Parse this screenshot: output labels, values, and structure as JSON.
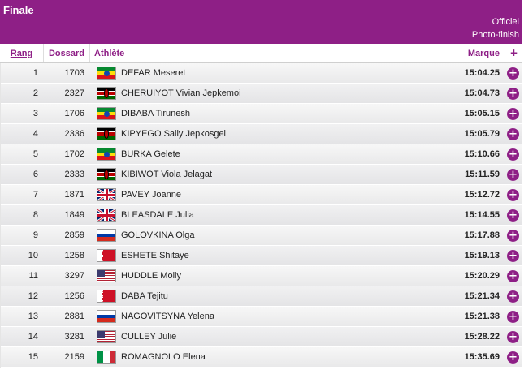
{
  "header": {
    "title": "Finale",
    "status_line1": "Officiel",
    "status_line2": "Photo-finish"
  },
  "columns": {
    "rang": "Rang",
    "dossard": "Dossard",
    "athlete": "Athlète",
    "marque": "Marque",
    "plus": "+"
  },
  "colors": {
    "accent": "#8e1f86"
  },
  "rows": [
    {
      "rang": "1",
      "dossard": "1703",
      "name": "DEFAR Meseret",
      "flag": "ETH",
      "marque": "15:04.25"
    },
    {
      "rang": "2",
      "dossard": "2327",
      "name": "CHERUIYOT Vivian Jepkemoi",
      "flag": "KEN",
      "marque": "15:04.73"
    },
    {
      "rang": "3",
      "dossard": "1706",
      "name": "DIBABA Tirunesh",
      "flag": "ETH",
      "marque": "15:05.15"
    },
    {
      "rang": "4",
      "dossard": "2336",
      "name": "KIPYEGO Sally Jepkosgei",
      "flag": "KEN",
      "marque": "15:05.79"
    },
    {
      "rang": "5",
      "dossard": "1702",
      "name": "BURKA Gelete",
      "flag": "ETH",
      "marque": "15:10.66"
    },
    {
      "rang": "6",
      "dossard": "2333",
      "name": "KIBIWOT Viola Jelagat",
      "flag": "KEN",
      "marque": "15:11.59"
    },
    {
      "rang": "7",
      "dossard": "1871",
      "name": "PAVEY Joanne",
      "flag": "GBR",
      "marque": "15:12.72"
    },
    {
      "rang": "8",
      "dossard": "1849",
      "name": "BLEASDALE Julia",
      "flag": "GBR",
      "marque": "15:14.55"
    },
    {
      "rang": "9",
      "dossard": "2859",
      "name": "GOLOVKINA Olga",
      "flag": "RUS",
      "marque": "15:17.88"
    },
    {
      "rang": "10",
      "dossard": "1258",
      "name": "ESHETE Shitaye",
      "flag": "BRN",
      "marque": "15:19.13"
    },
    {
      "rang": "11",
      "dossard": "3297",
      "name": "HUDDLE Molly",
      "flag": "USA",
      "marque": "15:20.29"
    },
    {
      "rang": "12",
      "dossard": "1256",
      "name": "DABA Tejitu",
      "flag": "BRN",
      "marque": "15:21.34"
    },
    {
      "rang": "13",
      "dossard": "2881",
      "name": "NAGOVITSYNA Yelena",
      "flag": "RUS",
      "marque": "15:21.38"
    },
    {
      "rang": "14",
      "dossard": "3281",
      "name": "CULLEY Julie",
      "flag": "USA",
      "marque": "15:28.22"
    },
    {
      "rang": "15",
      "dossard": "2159",
      "name": "ROMAGNOLO Elena",
      "flag": "ITA",
      "marque": "15:35.69"
    }
  ]
}
